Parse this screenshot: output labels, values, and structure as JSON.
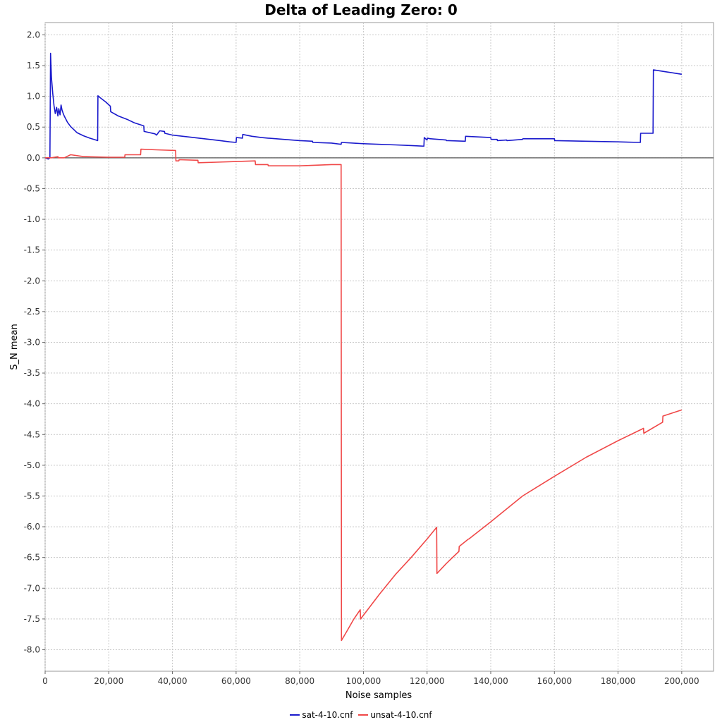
{
  "chart_data": {
    "type": "line",
    "title": "Delta of Leading Zero: 0",
    "xlabel": "Noise samples",
    "ylabel": "S_N mean",
    "xlim": [
      0,
      210000
    ],
    "ylim": [
      -8.35,
      2.2
    ],
    "grid": true,
    "legend_placement": "bottom-center",
    "x_ticks": [
      0,
      20000,
      40000,
      60000,
      80000,
      100000,
      120000,
      140000,
      160000,
      180000,
      200000
    ],
    "x_tick_labels": [
      "0",
      "20,000",
      "40,000",
      "60,000",
      "80,000",
      "100,000",
      "120,000",
      "140,000",
      "160,000",
      "180,000",
      "200,000"
    ],
    "y_ticks": [
      2.0,
      1.5,
      1.0,
      0.5,
      0.0,
      -0.5,
      -1.0,
      -1.5,
      -2.0,
      -2.5,
      -3.0,
      -3.5,
      -4.0,
      -4.5,
      -5.0,
      -5.5,
      -6.0,
      -6.5,
      -7.0,
      -7.5,
      -8.0
    ],
    "y_tick_labels": [
      "2.0",
      "1.5",
      "1.0",
      "0.5",
      "0.0",
      "-0.5",
      "-1.0",
      "-1.5",
      "-2.0",
      "-2.5",
      "-3.0",
      "-3.5",
      "-4.0",
      "-4.5",
      "-5.0",
      "-5.5",
      "-6.0",
      "-6.5",
      "-7.0",
      "-7.5",
      "-8.0"
    ],
    "series": [
      {
        "name": "sat-4-10.cnf",
        "color": "#1a1acc",
        "x": [
          0,
          1000,
          1500,
          1700,
          2000,
          2400,
          2800,
          3200,
          3600,
          4000,
          4300,
          4700,
          5000,
          5300,
          5700,
          6000,
          7000,
          8000,
          9000,
          10000,
          12000,
          14000,
          16500,
          16600,
          17000,
          19000,
          20500,
          20600,
          23000,
          26000,
          28000,
          31000,
          31100,
          34500,
          35000,
          36000,
          37500,
          37600,
          40000,
          45000,
          50000,
          55000,
          58000,
          60000,
          60100,
          62000,
          62100,
          65000,
          68000,
          70000,
          75000,
          80000,
          84000,
          84100,
          90000,
          93000,
          93100,
          100000,
          105000,
          110000,
          115000,
          119000,
          119100,
          120000,
          120100,
          121000,
          121100,
          126000,
          126100,
          132000,
          132100,
          140000,
          140100,
          142000,
          142100,
          145000,
          145100,
          150000,
          150100,
          158000,
          160000,
          160100,
          170000,
          180000,
          187000,
          187100,
          191000,
          191100,
          195000,
          200000
        ],
        "y": [
          0.0,
          -0.02,
          0.0,
          1.7,
          1.3,
          1.05,
          0.85,
          0.72,
          0.82,
          0.68,
          0.8,
          0.7,
          0.86,
          0.78,
          0.72,
          0.68,
          0.58,
          0.51,
          0.46,
          0.41,
          0.36,
          0.32,
          0.28,
          1.01,
          0.99,
          0.91,
          0.84,
          0.75,
          0.68,
          0.62,
          0.57,
          0.52,
          0.43,
          0.39,
          0.37,
          0.44,
          0.43,
          0.4,
          0.37,
          0.34,
          0.31,
          0.28,
          0.26,
          0.25,
          0.33,
          0.32,
          0.38,
          0.35,
          0.33,
          0.32,
          0.3,
          0.28,
          0.27,
          0.25,
          0.24,
          0.22,
          0.25,
          0.23,
          0.22,
          0.21,
          0.2,
          0.19,
          0.33,
          0.29,
          0.32,
          0.31,
          0.31,
          0.29,
          0.28,
          0.27,
          0.35,
          0.33,
          0.3,
          0.3,
          0.28,
          0.29,
          0.28,
          0.3,
          0.31,
          0.31,
          0.31,
          0.28,
          0.27,
          0.26,
          0.25,
          0.4,
          0.4,
          1.43,
          1.4,
          1.36
        ]
      },
      {
        "name": "unsat-4-10.cnf",
        "color": "#f04848",
        "x": [
          0,
          2000,
          4000,
          4100,
          6000,
          8000,
          8100,
          12000,
          12100,
          20000,
          25000,
          25100,
          30000,
          30100,
          35000,
          41000,
          41100,
          42000,
          42100,
          48000,
          48100,
          54000,
          60000,
          66000,
          66100,
          70000,
          70100,
          80000,
          90000,
          93000,
          93100,
          95000,
          97000,
          99000,
          99100,
          105000,
          110000,
          115000,
          120000,
          123000,
          123100,
          126000,
          130000,
          130100,
          133000,
          133100,
          140000,
          150000,
          160000,
          170000,
          180000,
          188000,
          188100,
          194000,
          194100,
          200000
        ],
        "y": [
          0.0,
          0.0,
          0.02,
          0.0,
          0.0,
          0.05,
          0.05,
          0.02,
          0.02,
          0.01,
          0.01,
          0.05,
          0.05,
          0.14,
          0.13,
          0.12,
          -0.05,
          -0.05,
          -0.03,
          -0.04,
          -0.08,
          -0.07,
          -0.06,
          -0.05,
          -0.11,
          -0.11,
          -0.13,
          -0.13,
          -0.11,
          -0.11,
          -7.85,
          -7.68,
          -7.5,
          -7.35,
          -7.5,
          -7.1,
          -6.78,
          -6.5,
          -6.2,
          -6.01,
          -6.76,
          -6.6,
          -6.4,
          -6.32,
          -6.2,
          -6.2,
          -5.92,
          -5.5,
          -5.18,
          -4.87,
          -4.6,
          -4.4,
          -4.48,
          -4.3,
          -4.2,
          -4.1
        ]
      }
    ]
  }
}
